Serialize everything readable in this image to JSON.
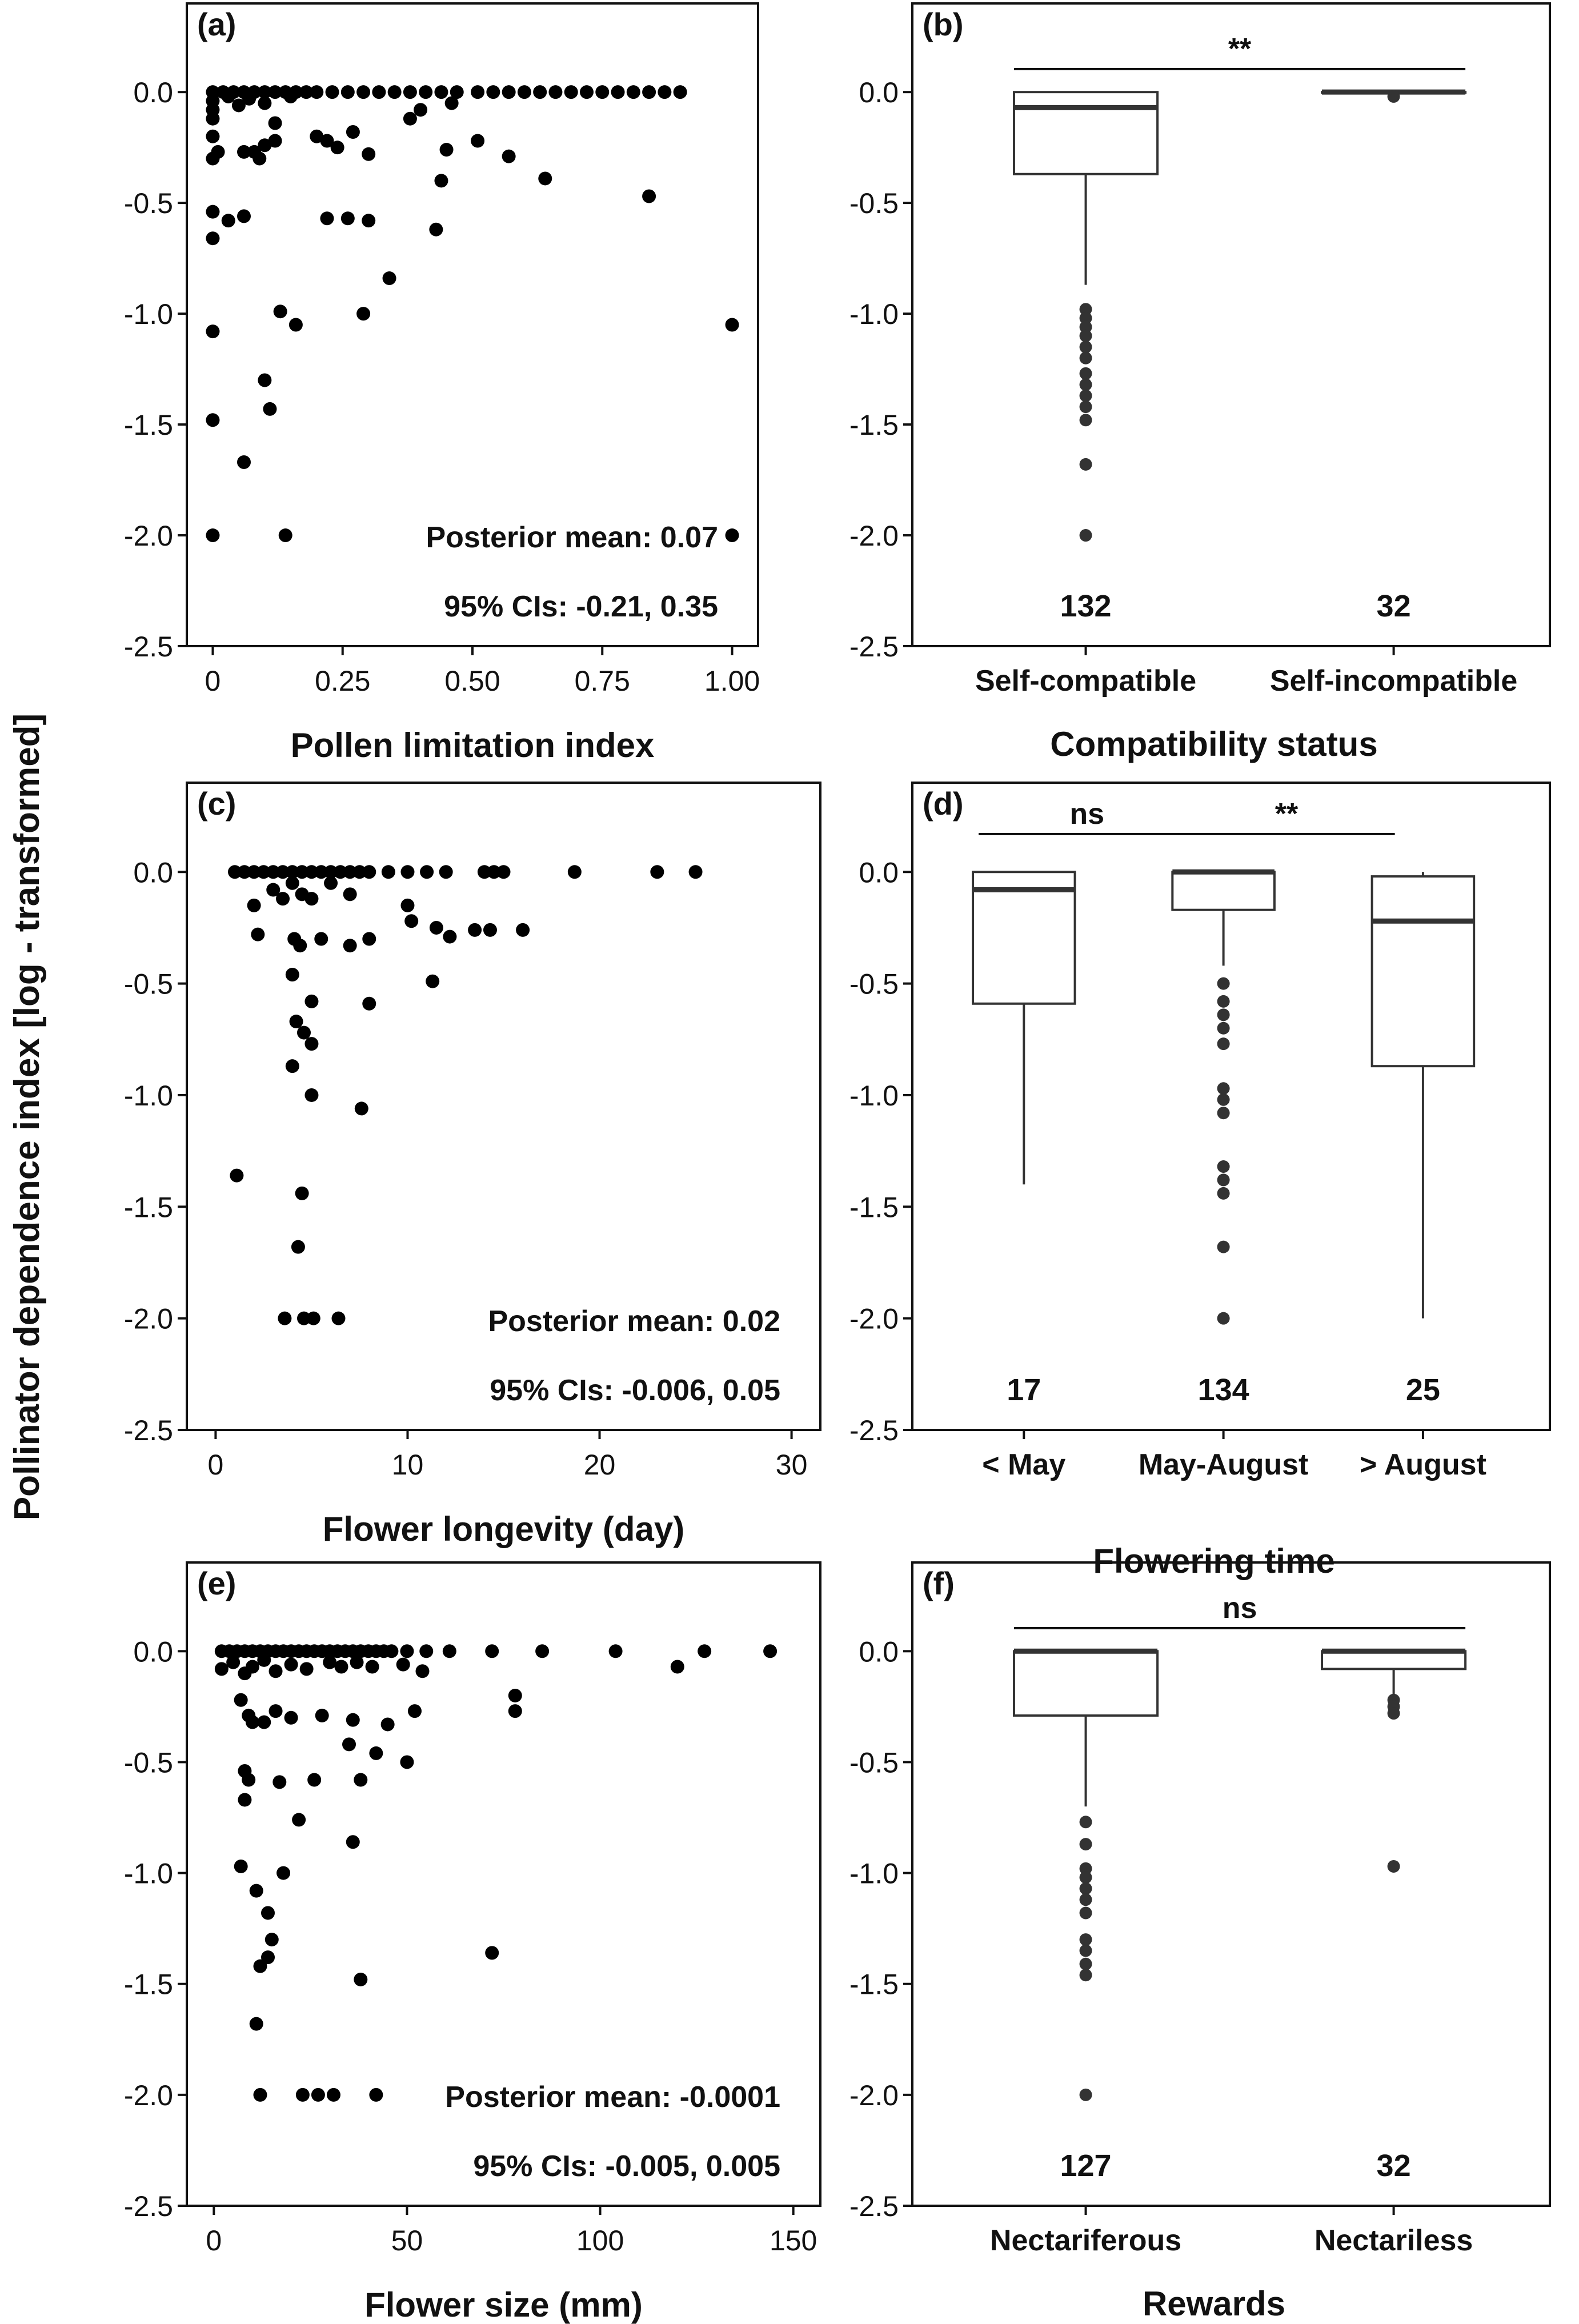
{
  "y_axis_label": "Pollinator dependence index [log - transformed]",
  "chart_data": [
    {
      "type": "scatter",
      "panel": "(a)",
      "xlabel": "Pollen limitation index",
      "xlim": [
        -0.05,
        1.05
      ],
      "ylim": [
        -2.5,
        0.4
      ],
      "xticks": [
        0,
        0.25,
        0.5,
        0.75,
        1.0
      ],
      "xtick_labels": [
        "0",
        "0.25",
        "0.50",
        "0.75",
        "1.00"
      ],
      "yticks": [
        0,
        -0.5,
        -1,
        -1.5,
        -2,
        -2.5
      ],
      "ytick_labels": [
        "0.0",
        "-0.5",
        "-1.0",
        "-1.5",
        "-2.0",
        "-2.5"
      ],
      "annotation": [
        "Posterior mean: 0.07",
        "95% CIs: -0.21, 0.35"
      ],
      "points": [
        [
          0,
          0
        ],
        [
          0.02,
          0
        ],
        [
          0.04,
          0
        ],
        [
          0.06,
          0
        ],
        [
          0.08,
          0
        ],
        [
          0.1,
          0
        ],
        [
          0.12,
          0
        ],
        [
          0.14,
          0
        ],
        [
          0.16,
          0
        ],
        [
          0.18,
          0
        ],
        [
          0.2,
          0
        ],
        [
          0.23,
          0
        ],
        [
          0.26,
          0
        ],
        [
          0.29,
          0
        ],
        [
          0.32,
          0
        ],
        [
          0.35,
          0
        ],
        [
          0.38,
          0
        ],
        [
          0.41,
          0
        ],
        [
          0.44,
          0
        ],
        [
          0.47,
          0
        ],
        [
          0.51,
          0
        ],
        [
          0.54,
          0
        ],
        [
          0.57,
          0
        ],
        [
          0.6,
          0
        ],
        [
          0.63,
          0
        ],
        [
          0.66,
          0
        ],
        [
          0.69,
          0
        ],
        [
          0.72,
          0
        ],
        [
          0.75,
          0
        ],
        [
          0.78,
          0
        ],
        [
          0.81,
          0
        ],
        [
          0.84,
          0
        ],
        [
          0.87,
          0
        ],
        [
          0.9,
          0
        ],
        [
          0,
          -0.04
        ],
        [
          0.03,
          -0.02
        ],
        [
          0.07,
          -0.03
        ],
        [
          0,
          -0.08
        ],
        [
          0,
          -0.12
        ],
        [
          0.05,
          -0.06
        ],
        [
          0.1,
          -0.05
        ],
        [
          0.15,
          -0.02
        ],
        [
          0.12,
          -0.14
        ],
        [
          0,
          -0.2
        ],
        [
          0.01,
          -0.27
        ],
        [
          0.1,
          -0.24
        ],
        [
          0.12,
          -0.22
        ],
        [
          0.2,
          -0.2
        ],
        [
          0,
          -0.3
        ],
        [
          0.06,
          -0.27
        ],
        [
          0.08,
          -0.27
        ],
        [
          0.09,
          -0.3
        ],
        [
          0.22,
          -0.22
        ],
        [
          0.24,
          -0.25
        ],
        [
          0.27,
          -0.18
        ],
        [
          0.3,
          -0.28
        ],
        [
          0.38,
          -0.12
        ],
        [
          0.4,
          -0.08
        ],
        [
          0.46,
          -0.05
        ],
        [
          0.45,
          -0.26
        ],
        [
          0.51,
          -0.22
        ],
        [
          0.57,
          -0.29
        ],
        [
          0.44,
          -0.4
        ],
        [
          0.64,
          -0.39
        ],
        [
          0.84,
          -0.47
        ],
        [
          0,
          -0.54
        ],
        [
          0.03,
          -0.58
        ],
        [
          0.06,
          -0.56
        ],
        [
          0.22,
          -0.57
        ],
        [
          0.26,
          -0.57
        ],
        [
          0.3,
          -0.58
        ],
        [
          0.43,
          -0.62
        ],
        [
          0,
          -0.66
        ],
        [
          0.34,
          -0.84
        ],
        [
          0.13,
          -0.99
        ],
        [
          0.29,
          -1.0
        ],
        [
          0.16,
          -1.05
        ],
        [
          0,
          -1.08
        ],
        [
          1.0,
          -1.05
        ],
        [
          0.1,
          -1.3
        ],
        [
          0.11,
          -1.43
        ],
        [
          0,
          -1.48
        ],
        [
          0.06,
          -1.67
        ],
        [
          0,
          -2.0
        ],
        [
          0.14,
          -2.0
        ],
        [
          1.0,
          -2.0
        ]
      ]
    },
    {
      "type": "boxplot",
      "panel": "(b)",
      "xlabel": "Compatibility status",
      "ylim": [
        -2.5,
        0.4
      ],
      "yticks": [
        0,
        -0.5,
        -1,
        -1.5,
        -2,
        -2.5
      ],
      "ytick_labels": [
        "0.0",
        "-0.5",
        "-1.0",
        "-1.5",
        "-2.0",
        "-2.5"
      ],
      "categories": [
        "Self-compatible",
        "Self-incompatible"
      ],
      "boxes": [
        {
          "q1": -0.37,
          "median": -0.07,
          "q3": 0.0,
          "whisker_low": -0.87,
          "whisker_high": 0.0,
          "outliers": [
            -0.98,
            -1.02,
            -1.06,
            -1.1,
            -1.15,
            -1.2,
            -1.27,
            -1.32,
            -1.37,
            -1.42,
            -1.48,
            -1.68,
            -2.0
          ],
          "n": "132"
        },
        {
          "q1": 0.0,
          "median": 0.0,
          "q3": 0.0,
          "whisker_low": 0.0,
          "whisker_high": 0.0,
          "outliers": [
            -0.02
          ],
          "n": "32"
        }
      ],
      "significance": [
        {
          "from": 0,
          "to": 1,
          "label": "**"
        }
      ]
    },
    {
      "type": "scatter",
      "panel": "(c)",
      "xlabel": "Flower longevity (day)",
      "xlim": [
        -1.5,
        31.5
      ],
      "ylim": [
        -2.5,
        0.4
      ],
      "xticks": [
        0,
        10,
        20,
        30
      ],
      "xtick_labels": [
        "0",
        "10",
        "20",
        "30"
      ],
      "yticks": [
        0,
        -0.5,
        -1,
        -1.5,
        -2,
        -2.5
      ],
      "ytick_labels": [
        "0.0",
        "-0.5",
        "-1.0",
        "-1.5",
        "-2.0",
        "-2.5"
      ],
      "annotation": [
        "Posterior mean: 0.02",
        "95% CIs: -0.006, 0.05"
      ],
      "points": [
        [
          1,
          0
        ],
        [
          1.5,
          0
        ],
        [
          2,
          0
        ],
        [
          2.5,
          0
        ],
        [
          3,
          0
        ],
        [
          3.5,
          0
        ],
        [
          4,
          0
        ],
        [
          4.5,
          0
        ],
        [
          5,
          0
        ],
        [
          5.5,
          0
        ],
        [
          6,
          0
        ],
        [
          6.5,
          0
        ],
        [
          7,
          0
        ],
        [
          7.5,
          0
        ],
        [
          8,
          0
        ],
        [
          9,
          0
        ],
        [
          10,
          0
        ],
        [
          11,
          0
        ],
        [
          12,
          0
        ],
        [
          14,
          0
        ],
        [
          14.5,
          0
        ],
        [
          15,
          0
        ],
        [
          18.7,
          0
        ],
        [
          23,
          0
        ],
        [
          25,
          0
        ],
        [
          2,
          -0.15
        ],
        [
          3,
          -0.08
        ],
        [
          3.5,
          -0.12
        ],
        [
          4,
          -0.05
        ],
        [
          4.5,
          -0.1
        ],
        [
          5,
          -0.12
        ],
        [
          6,
          -0.05
        ],
        [
          7,
          -0.1
        ],
        [
          10.2,
          -0.22
        ],
        [
          11.5,
          -0.25
        ],
        [
          12.2,
          -0.29
        ],
        [
          13.5,
          -0.26
        ],
        [
          14.3,
          -0.26
        ],
        [
          16,
          -0.26
        ],
        [
          10,
          -0.15
        ],
        [
          2.2,
          -0.28
        ],
        [
          4.1,
          -0.3
        ],
        [
          4.4,
          -0.33
        ],
        [
          5.5,
          -0.3
        ],
        [
          7,
          -0.33
        ],
        [
          8,
          -0.3
        ],
        [
          11.3,
          -0.49
        ],
        [
          4,
          -0.46
        ],
        [
          5,
          -0.58
        ],
        [
          8,
          -0.59
        ],
        [
          4.2,
          -0.67
        ],
        [
          4.6,
          -0.72
        ],
        [
          5,
          -0.77
        ],
        [
          4,
          -0.87
        ],
        [
          5,
          -1.0
        ],
        [
          7.6,
          -1.06
        ],
        [
          1.1,
          -1.36
        ],
        [
          4.5,
          -1.44
        ],
        [
          4.3,
          -1.68
        ],
        [
          3.6,
          -2.0
        ],
        [
          4.6,
          -2.0
        ],
        [
          5.1,
          -2.0
        ],
        [
          6.4,
          -2.0
        ]
      ]
    },
    {
      "type": "boxplot",
      "panel": "(d)",
      "xlabel": "Flowering time",
      "ylim": [
        -2.5,
        0.4
      ],
      "yticks": [
        0,
        -0.5,
        -1,
        -1.5,
        -2,
        -2.5
      ],
      "ytick_labels": [
        "0.0",
        "-0.5",
        "-1.0",
        "-1.5",
        "-2.0",
        "-2.5"
      ],
      "categories": [
        "< May",
        "May-August",
        "> August"
      ],
      "boxes": [
        {
          "q1": -0.59,
          "median": -0.08,
          "q3": 0.0,
          "whisker_low": -1.4,
          "whisker_high": 0.0,
          "outliers": [],
          "n": "17"
        },
        {
          "q1": -0.17,
          "median": 0.0,
          "q3": 0.0,
          "whisker_low": -0.42,
          "whisker_high": 0.0,
          "outliers": [
            -0.5,
            -0.58,
            -0.64,
            -0.7,
            -0.77,
            -0.97,
            -1.02,
            -1.08,
            -1.32,
            -1.38,
            -1.44,
            -1.68,
            -2.0
          ],
          "n": "134"
        },
        {
          "q1": -0.87,
          "median": -0.22,
          "q3": -0.02,
          "whisker_low": -2.0,
          "whisker_high": 0.0,
          "outliers": [],
          "n": "25"
        }
      ],
      "significance": [
        {
          "from": 0,
          "to": 1,
          "label": "ns"
        },
        {
          "from": 1,
          "to": 2,
          "label": "**"
        }
      ]
    },
    {
      "type": "scatter",
      "panel": "(e)",
      "xlabel": "Flower size (mm)",
      "xlim": [
        -7,
        157
      ],
      "ylim": [
        -2.5,
        0.4
      ],
      "xticks": [
        0,
        50,
        100,
        150
      ],
      "xtick_labels": [
        "0",
        "50",
        "100",
        "150"
      ],
      "yticks": [
        0,
        -0.5,
        -1,
        -1.5,
        -2,
        -2.5
      ],
      "ytick_labels": [
        "0.0",
        "-0.5",
        "-1.0",
        "-1.5",
        "-2.0",
        "-2.5"
      ],
      "annotation": [
        "Posterior mean: -0.0001",
        "95% CIs: -0.005, 0.005"
      ],
      "points": [
        [
          2,
          0
        ],
        [
          4,
          0
        ],
        [
          6,
          0
        ],
        [
          8,
          0
        ],
        [
          10,
          0
        ],
        [
          12,
          0
        ],
        [
          14,
          0
        ],
        [
          16,
          0
        ],
        [
          18,
          0
        ],
        [
          20,
          0
        ],
        [
          22,
          0
        ],
        [
          24,
          0
        ],
        [
          26,
          0
        ],
        [
          28,
          0
        ],
        [
          30,
          0
        ],
        [
          32,
          0
        ],
        [
          34,
          0
        ],
        [
          36,
          0
        ],
        [
          38,
          0
        ],
        [
          40,
          0
        ],
        [
          42,
          0
        ],
        [
          44,
          0
        ],
        [
          46,
          0
        ],
        [
          50,
          0
        ],
        [
          55,
          0
        ],
        [
          61,
          0
        ],
        [
          72,
          0
        ],
        [
          85,
          0
        ],
        [
          104,
          0
        ],
        [
          127,
          0
        ],
        [
          144,
          0
        ],
        [
          2,
          -0.08
        ],
        [
          5,
          -0.05
        ],
        [
          8,
          -0.1
        ],
        [
          10,
          -0.07
        ],
        [
          13,
          -0.04
        ],
        [
          16,
          -0.09
        ],
        [
          20,
          -0.06
        ],
        [
          24,
          -0.08
        ],
        [
          30,
          -0.05
        ],
        [
          33,
          -0.07
        ],
        [
          37,
          -0.05
        ],
        [
          41,
          -0.07
        ],
        [
          49,
          -0.06
        ],
        [
          54,
          -0.09
        ],
        [
          120,
          -0.07
        ],
        [
          7,
          -0.22
        ],
        [
          9,
          -0.29
        ],
        [
          10,
          -0.32
        ],
        [
          13,
          -0.32
        ],
        [
          16,
          -0.27
        ],
        [
          20,
          -0.3
        ],
        [
          28,
          -0.29
        ],
        [
          36,
          -0.31
        ],
        [
          45,
          -0.33
        ],
        [
          52,
          -0.27
        ],
        [
          78,
          -0.2
        ],
        [
          78,
          -0.27
        ],
        [
          35,
          -0.42
        ],
        [
          42,
          -0.46
        ],
        [
          50,
          -0.5
        ],
        [
          8,
          -0.54
        ],
        [
          9,
          -0.58
        ],
        [
          17,
          -0.59
        ],
        [
          26,
          -0.58
        ],
        [
          38,
          -0.58
        ],
        [
          8,
          -0.67
        ],
        [
          22,
          -0.76
        ],
        [
          36,
          -0.86
        ],
        [
          7,
          -0.97
        ],
        [
          18,
          -1.0
        ],
        [
          11,
          -1.08
        ],
        [
          14,
          -1.18
        ],
        [
          15,
          -1.3
        ],
        [
          12,
          -1.42
        ],
        [
          14,
          -1.38
        ],
        [
          38,
          -1.48
        ],
        [
          72,
          -1.36
        ],
        [
          11,
          -1.68
        ],
        [
          12,
          -2.0
        ],
        [
          23,
          -2.0
        ],
        [
          27,
          -2.0
        ],
        [
          31,
          -2.0
        ],
        [
          42,
          -2.0
        ]
      ]
    },
    {
      "type": "boxplot",
      "panel": "(f)",
      "xlabel": "Rewards",
      "ylim": [
        -2.5,
        0.4
      ],
      "yticks": [
        0,
        -0.5,
        -1,
        -1.5,
        -2,
        -2.5
      ],
      "ytick_labels": [
        "0.0",
        "-0.5",
        "-1.0",
        "-1.5",
        "-2.0",
        "-2.5"
      ],
      "categories": [
        "Nectariferous",
        "Nectariless"
      ],
      "boxes": [
        {
          "q1": -0.29,
          "median": 0.0,
          "q3": 0.0,
          "whisker_low": -0.7,
          "whisker_high": 0.0,
          "outliers": [
            -0.77,
            -0.87,
            -0.98,
            -1.02,
            -1.07,
            -1.12,
            -1.18,
            -1.3,
            -1.35,
            -1.41,
            -1.46,
            -2.0
          ],
          "n": "127"
        },
        {
          "q1": -0.08,
          "median": 0.0,
          "q3": 0.0,
          "whisker_low": -0.2,
          "whisker_high": 0.0,
          "outliers": [
            -0.22,
            -0.25,
            -0.28,
            -0.97
          ],
          "n": "32"
        }
      ],
      "significance": [
        {
          "from": 0,
          "to": 1,
          "label": "ns"
        }
      ]
    }
  ]
}
